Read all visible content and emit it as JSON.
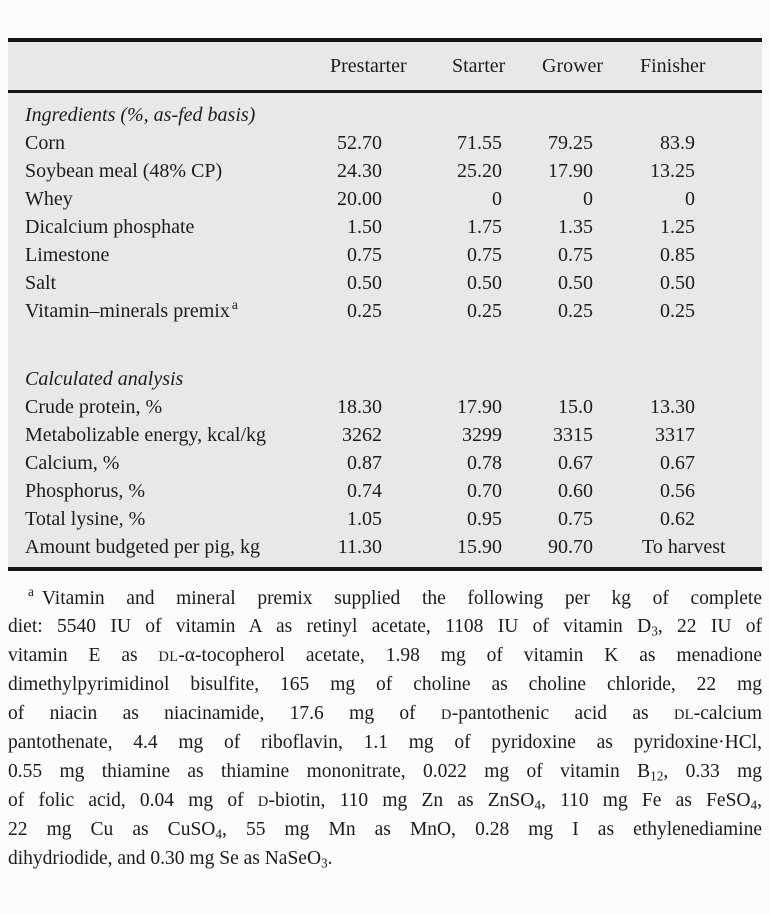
{
  "table": {
    "columns": [
      "Prestarter",
      "Starter",
      "Grower",
      "Finisher"
    ],
    "sections": [
      {
        "heading": "Ingredients (%, as-fed basis)",
        "rows": [
          {
            "label": "Corn",
            "values": [
              "52.70",
              "71.55",
              "79.25",
              "83.9"
            ]
          },
          {
            "label": "Soybean meal (48% CP)",
            "values": [
              "24.30",
              "25.20",
              "17.90",
              "13.25"
            ]
          },
          {
            "label": "Whey",
            "values": [
              "20.00",
              "0",
              "0",
              "0"
            ]
          },
          {
            "label": "Dicalcium phosphate",
            "values": [
              "1.50",
              "1.75",
              "1.35",
              "1.25"
            ]
          },
          {
            "label": "Limestone",
            "values": [
              "0.75",
              "0.75",
              "0.75",
              "0.85"
            ]
          },
          {
            "label": "Salt",
            "values": [
              "0.50",
              "0.50",
              "0.50",
              "0.50"
            ]
          },
          {
            "label": "Vitamin–minerals premix",
            "label_sup": "a",
            "values": [
              "0.25",
              "0.25",
              "0.25",
              "0.25"
            ]
          }
        ]
      },
      {
        "heading": "Calculated analysis",
        "rows": [
          {
            "label": "Crude protein, %",
            "values": [
              "18.30",
              "17.90",
              "15.0",
              "13.30"
            ]
          },
          {
            "label": "Metabolizable energy, kcal/kg",
            "values": [
              "3262",
              "3299",
              "3315",
              "3317"
            ]
          },
          {
            "label": "Calcium, %",
            "values": [
              "0.87",
              "0.78",
              "0.67",
              "0.67"
            ]
          },
          {
            "label": "Phosphorus, %",
            "values": [
              "0.74",
              "0.70",
              "0.60",
              "0.56"
            ]
          },
          {
            "label": "Total lysine, %",
            "values": [
              "1.05",
              "0.95",
              "0.75",
              "0.62"
            ]
          },
          {
            "label": "Amount budgeted per pig, kg",
            "values": [
              "11.30",
              "15.90",
              "90.70",
              "To harvest"
            ]
          }
        ]
      }
    ]
  },
  "footnote": {
    "marker": "a",
    "lines": [
      [
        [
          "Vitamin and mineral premix supplied the following per kg of complete",
          ""
        ]
      ],
      [
        [
          "diet: 5540 IU of vitamin A as retinyl acetate, 1108 IU of vitamin D",
          ""
        ],
        [
          "3",
          "sub"
        ],
        [
          ", 22 IU of",
          ""
        ]
      ],
      [
        [
          "vitamin E as ",
          ""
        ],
        [
          "dl",
          "sc"
        ],
        [
          "-α-tocopherol acetate, 1.98 mg of vitamin K as menadione",
          ""
        ]
      ],
      [
        [
          "dimethylpyrimidinol bisulfite, 165 mg of choline as choline chloride, 22 mg",
          ""
        ]
      ],
      [
        [
          "of niacin as niacinamide, 17.6 mg of ",
          ""
        ],
        [
          "d",
          "sc"
        ],
        [
          "-pantothenic acid as ",
          ""
        ],
        [
          "dl",
          "sc"
        ],
        [
          "-calcium",
          ""
        ]
      ],
      [
        [
          "pantothenate, 4.4 mg of riboflavin, 1.1 mg of pyridoxine as pyridoxine·HCl,",
          ""
        ]
      ],
      [
        [
          "0.55 mg thiamine as thiamine mononitrate, 0.022 mg of vitamin B",
          ""
        ],
        [
          "12",
          "sub"
        ],
        [
          ", 0.33 mg",
          ""
        ]
      ],
      [
        [
          "of folic acid, 0.04 mg of ",
          ""
        ],
        [
          "d",
          "sc"
        ],
        [
          "-biotin, 110 mg Zn as ZnSO",
          ""
        ],
        [
          "4",
          "sub"
        ],
        [
          ", 110 mg Fe as FeSO",
          ""
        ],
        [
          "4",
          "sub"
        ],
        [
          ",",
          ""
        ]
      ],
      [
        [
          "22 mg Cu as CuSO",
          ""
        ],
        [
          "4",
          "sub"
        ],
        [
          ", 55 mg Mn as MnO, 0.28 mg I as ethylenediamine",
          ""
        ]
      ],
      [
        [
          "dihydriodide, and 0.30 mg Se as NaSeO",
          ""
        ],
        [
          "3",
          "sub"
        ],
        [
          ".",
          ""
        ]
      ]
    ]
  },
  "colors": {
    "table_background": "#e8e8e6",
    "rule": "#16161a",
    "ink": "#1c1c20",
    "page_background": "#fcfcfa"
  }
}
